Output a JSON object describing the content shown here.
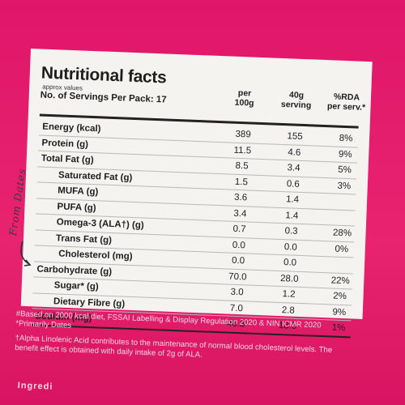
{
  "header": {
    "title": "Nutritional facts",
    "subtitle": "approx values",
    "servings": "No. of Servings Per Pack: 17",
    "columns": [
      "per\n100g",
      "40g\nserving",
      "%RDA\nper serv.*"
    ]
  },
  "rows": [
    {
      "name": "Energy (kcal)",
      "level": 0,
      "per100": "389",
      "serving": "155",
      "rda": "8%"
    },
    {
      "name": "Protein (g)",
      "level": 0,
      "per100": "11.5",
      "serving": "4.6",
      "rda": "9%"
    },
    {
      "name": "Total Fat (g)",
      "level": 0,
      "per100": "8.5",
      "serving": "3.4",
      "rda": "5%"
    },
    {
      "name": "Saturated Fat (g)",
      "level": 1,
      "per100": "1.5",
      "serving": "0.6",
      "rda": "3%"
    },
    {
      "name": "MUFA (g)",
      "level": 1,
      "per100": "3.6",
      "serving": "1.4",
      "rda": ""
    },
    {
      "name": "PUFA (g)",
      "level": 1,
      "per100": "3.4",
      "serving": "1.4",
      "rda": ""
    },
    {
      "name": "Omega-3 (ALA†) (g)",
      "level": 1,
      "per100": "0.7",
      "serving": "0.3",
      "rda": "28%"
    },
    {
      "name": "Trans Fat (g)",
      "level": 1,
      "per100": "0.0",
      "serving": "0.0",
      "rda": "0%"
    },
    {
      "name": "Cholesterol (mg)",
      "level": 2,
      "per100": "0.0",
      "serving": "0.0",
      "rda": ""
    },
    {
      "name": "Carbohydrate (g)",
      "level": 0,
      "per100": "70.0",
      "serving": "28.0",
      "rda": "22%"
    },
    {
      "name": "Sugar* (g)",
      "level": 1,
      "per100": "3.0",
      "serving": "1.2",
      "rda": "2%"
    },
    {
      "name": "Dietary Fibre (g)",
      "level": 1,
      "per100": "7.0",
      "serving": "2.8",
      "rda": "9%"
    },
    {
      "name": "Sodium (mg)",
      "level": 0,
      "per100": "46.3",
      "serving": "18.5",
      "rda": "1%"
    }
  ],
  "footnotes": {
    "line1": "#Based on 2000 kcal diet, FSSAI Labelling & Display Regulation 2020 & NIN ICMR 2020 *Primarily Dates",
    "line2": "†Alpha Linolenic Acid contributes to the maintenance of normal blood cholesterol levels. The benefit effect is obtained with daily intake of 2g of ALA."
  },
  "handwritten": "From Dates",
  "ingredients_fragment": "Ingredi",
  "icons": {
    "arrow": "curved-arrow-icon"
  }
}
